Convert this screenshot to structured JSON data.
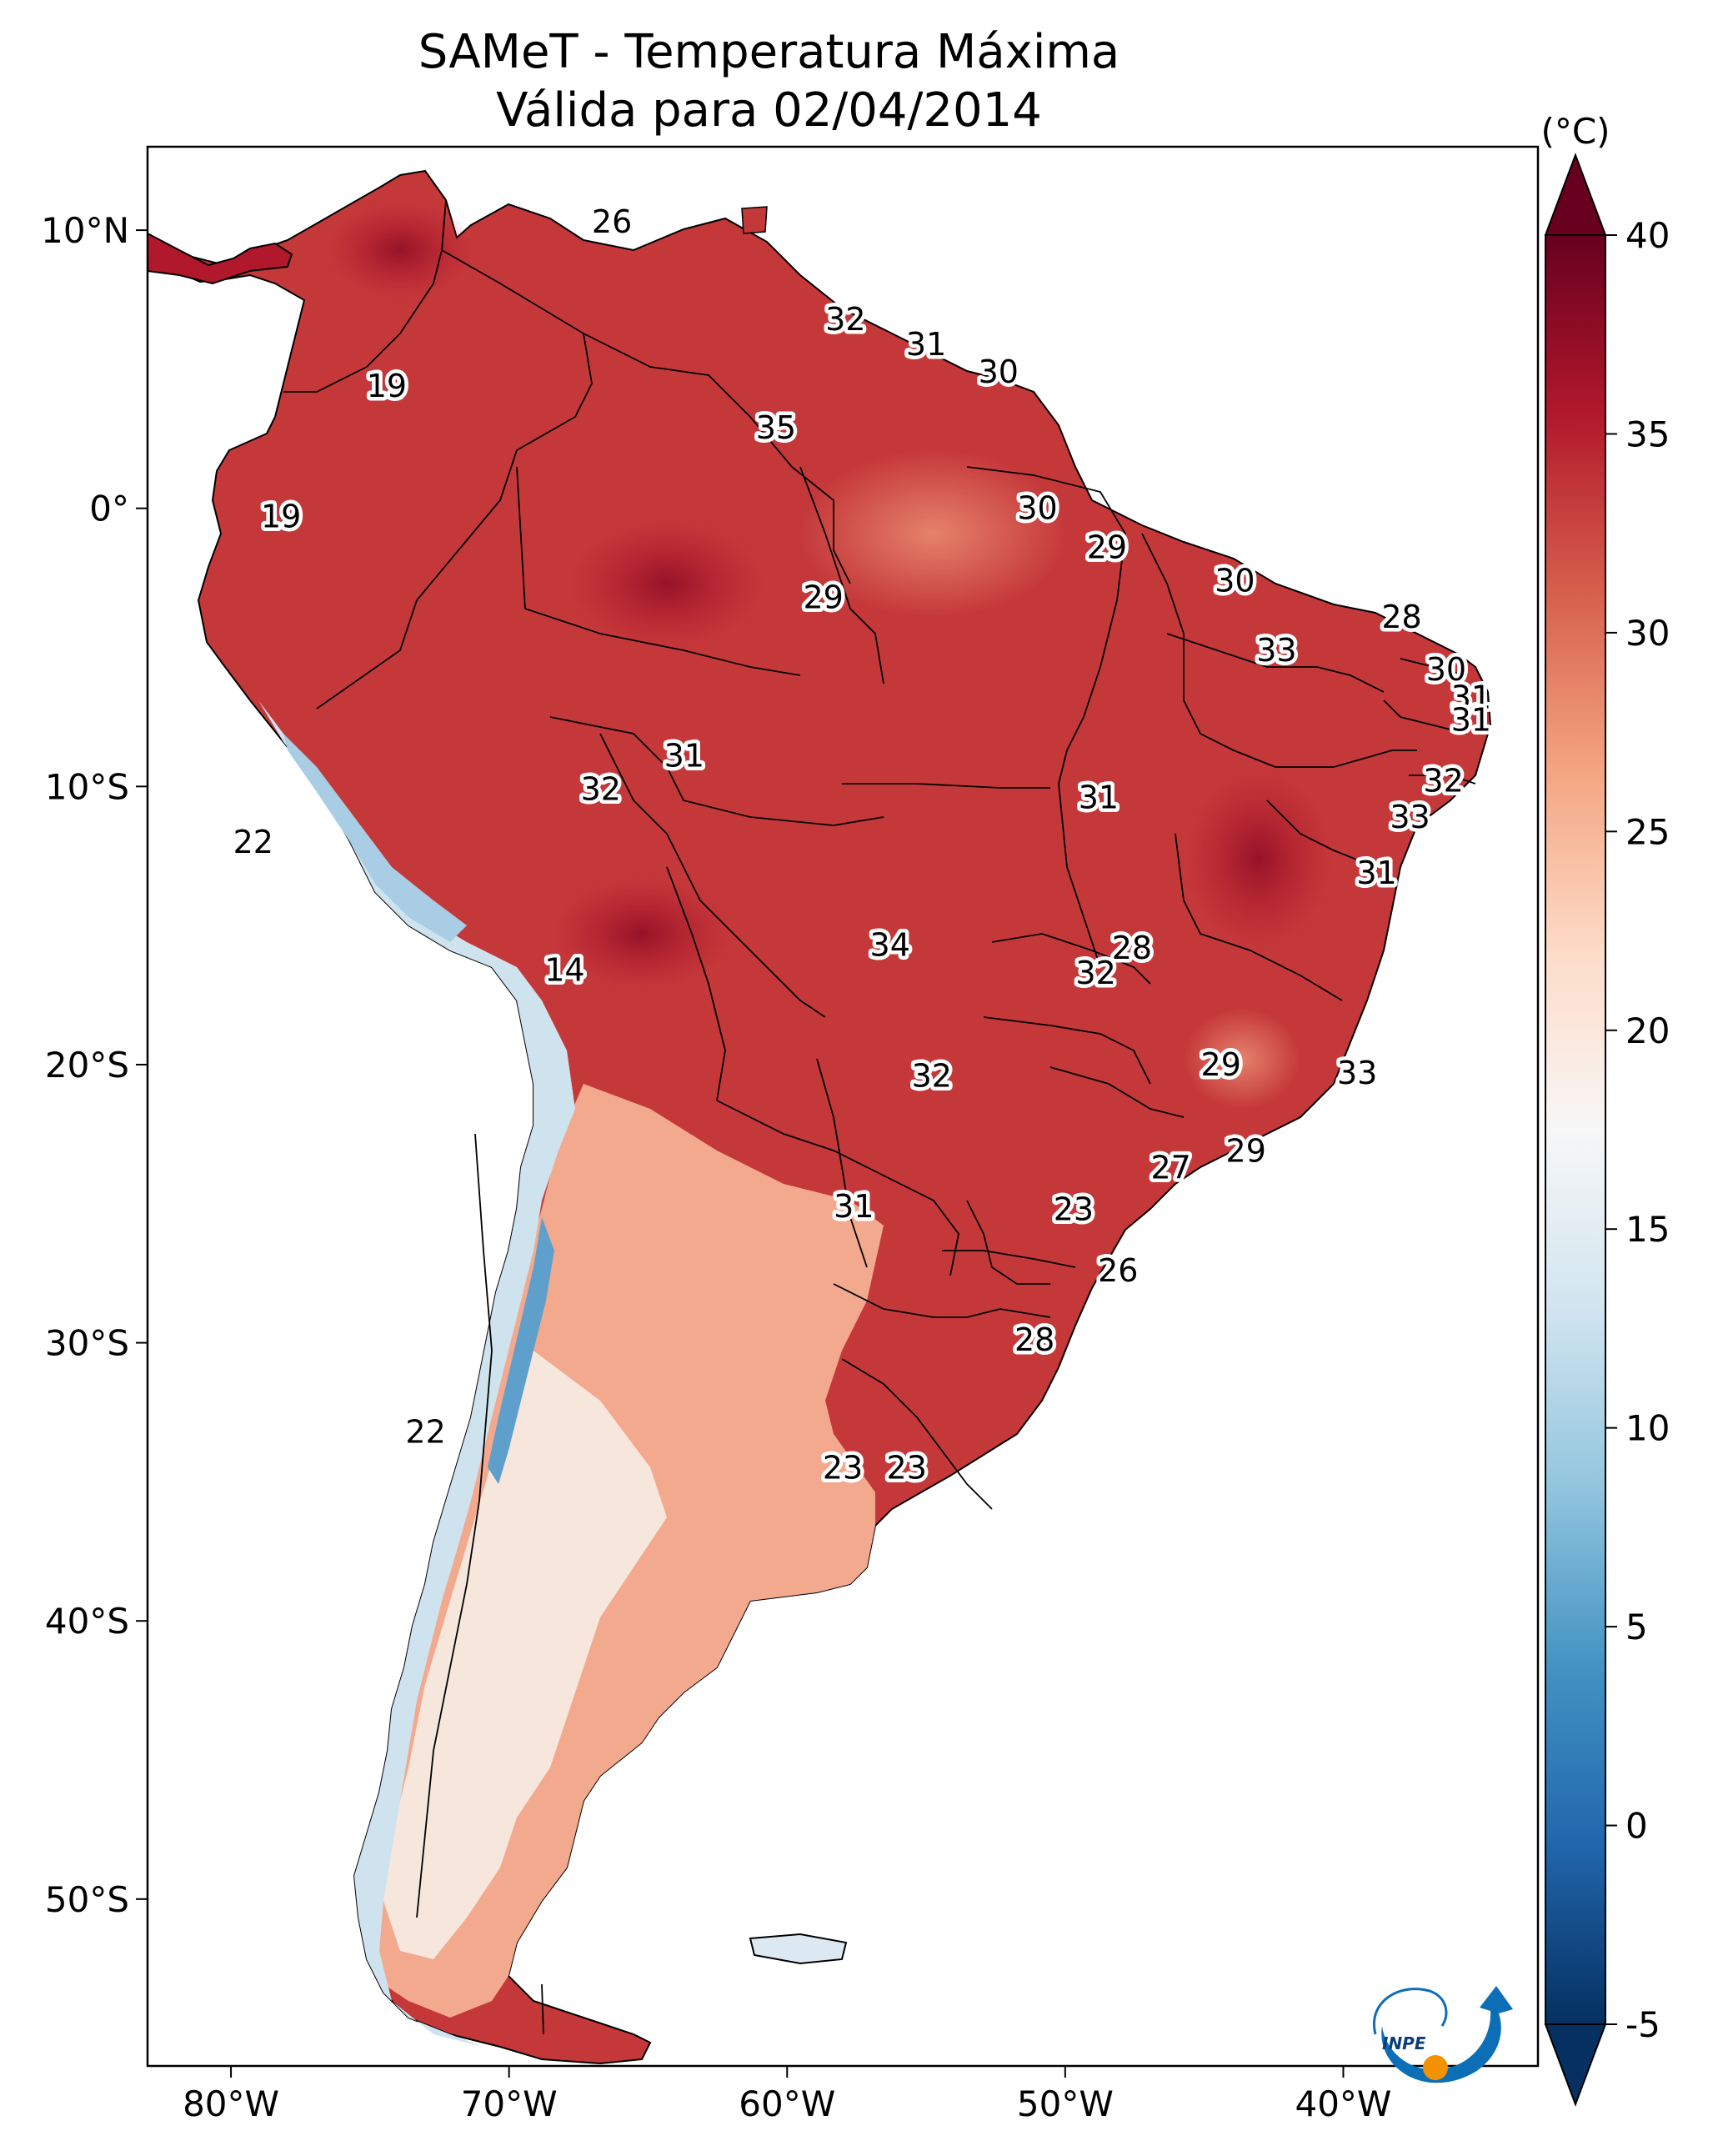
{
  "title": {
    "line1": "SAMeT - Temperatura Máxima",
    "line2": "Válida para 02/04/2014"
  },
  "map": {
    "lon_range": [
      -83,
      -33
    ],
    "lat_range": [
      -56,
      13
    ],
    "x_ticks": [
      {
        "lon": -80,
        "label": "80°W"
      },
      {
        "lon": -70,
        "label": "70°W"
      },
      {
        "lon": -60,
        "label": "60°W"
      },
      {
        "lon": -50,
        "label": "50°W"
      },
      {
        "lon": -40,
        "label": "40°W"
      }
    ],
    "y_ticks": [
      {
        "lat": 10,
        "label": "10°N"
      },
      {
        "lat": 0,
        "label": "0°"
      },
      {
        "lat": -10,
        "label": "10°S"
      },
      {
        "lat": -20,
        "label": "20°S"
      },
      {
        "lat": -30,
        "label": "30°S"
      },
      {
        "lat": -40,
        "label": "40°S"
      },
      {
        "lat": -50,
        "label": "50°S"
      }
    ],
    "contour_labels": [
      {
        "lon": -66.3,
        "lat": 10.3,
        "text": "26"
      },
      {
        "lon": -57.9,
        "lat": 6.8,
        "text": "32"
      },
      {
        "lon": -55.0,
        "lat": 5.9,
        "text": "31"
      },
      {
        "lon": -52.4,
        "lat": 4.9,
        "text": "30"
      },
      {
        "lon": -74.4,
        "lat": 4.4,
        "text": "19"
      },
      {
        "lon": -60.4,
        "lat": 2.9,
        "text": "35"
      },
      {
        "lon": -51.0,
        "lat": 0.0,
        "text": "30"
      },
      {
        "lon": -78.2,
        "lat": -0.3,
        "text": "19"
      },
      {
        "lon": -48.5,
        "lat": -1.4,
        "text": "29"
      },
      {
        "lon": -43.9,
        "lat": -2.6,
        "text": "30"
      },
      {
        "lon": -58.7,
        "lat": -3.2,
        "text": "29"
      },
      {
        "lon": -37.9,
        "lat": -3.9,
        "text": "28"
      },
      {
        "lon": -42.4,
        "lat": -5.1,
        "text": "33"
      },
      {
        "lon": -36.3,
        "lat": -5.8,
        "text": "30"
      },
      {
        "lon": -35.4,
        "lat": -6.8,
        "text": "31"
      },
      {
        "lon": -35.4,
        "lat": -7.6,
        "text": "31"
      },
      {
        "lon": -63.7,
        "lat": -8.9,
        "text": "31"
      },
      {
        "lon": -36.4,
        "lat": -9.8,
        "text": "32"
      },
      {
        "lon": -48.8,
        "lat": -10.4,
        "text": "31"
      },
      {
        "lon": -66.7,
        "lat": -10.1,
        "text": "32"
      },
      {
        "lon": -37.6,
        "lat": -11.1,
        "text": "33"
      },
      {
        "lon": -79.2,
        "lat": -12.0,
        "text": "22"
      },
      {
        "lon": -38.8,
        "lat": -13.1,
        "text": "31"
      },
      {
        "lon": -68.0,
        "lat": -16.6,
        "text": "14"
      },
      {
        "lon": -56.3,
        "lat": -15.7,
        "text": "34"
      },
      {
        "lon": -47.6,
        "lat": -15.8,
        "text": "28"
      },
      {
        "lon": -48.9,
        "lat": -16.7,
        "text": "32"
      },
      {
        "lon": -44.4,
        "lat": -20.0,
        "text": "29"
      },
      {
        "lon": -54.8,
        "lat": -20.4,
        "text": "32"
      },
      {
        "lon": -39.5,
        "lat": -20.3,
        "text": "33"
      },
      {
        "lon": -43.5,
        "lat": -23.1,
        "text": "29"
      },
      {
        "lon": -46.2,
        "lat": -23.7,
        "text": "27"
      },
      {
        "lon": -57.6,
        "lat": -25.1,
        "text": "31"
      },
      {
        "lon": -49.7,
        "lat": -25.2,
        "text": "23"
      },
      {
        "lon": -48.1,
        "lat": -27.4,
        "text": "26"
      },
      {
        "lon": -51.1,
        "lat": -29.9,
        "text": "28"
      },
      {
        "lon": -73.0,
        "lat": -33.2,
        "text": "22"
      },
      {
        "lon": -58.0,
        "lat": -34.5,
        "text": "23"
      },
      {
        "lon": -55.7,
        "lat": -34.5,
        "text": "23"
      }
    ]
  },
  "colorbar": {
    "unit": "(°C)",
    "min": -5,
    "max": 40,
    "extend": "both",
    "ticks": [
      {
        "value": 40,
        "label": "40"
      },
      {
        "value": 35,
        "label": "35"
      },
      {
        "value": 30,
        "label": "30"
      },
      {
        "value": 25,
        "label": "25"
      },
      {
        "value": 20,
        "label": "20"
      },
      {
        "value": 15,
        "label": "15"
      },
      {
        "value": 10,
        "label": "10"
      },
      {
        "value": 5,
        "label": "5"
      },
      {
        "value": 0,
        "label": "0"
      },
      {
        "value": -5,
        "label": "-5"
      }
    ],
    "colors": [
      "#053061",
      "#2166ac",
      "#4393c3",
      "#92c5de",
      "#d1e5f0",
      "#f7f7f7",
      "#fddbc7",
      "#f4a582",
      "#d6604d",
      "#b2182b",
      "#67001f"
    ]
  },
  "logo": {
    "text": "INPE",
    "accent_color": "#f39200",
    "brand_color": "#0d6eb8"
  }
}
